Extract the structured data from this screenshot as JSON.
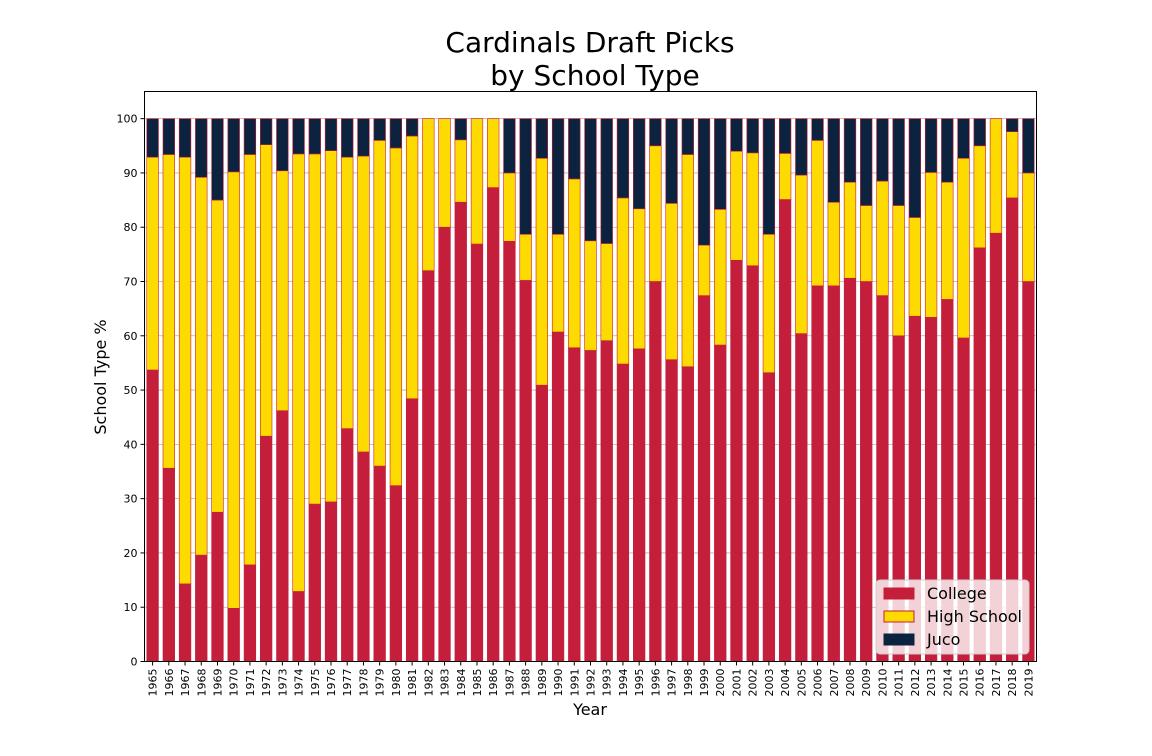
{
  "chart_data": {
    "type": "bar",
    "stacked": true,
    "title": "Cardinals Draft Picks\nby School Type",
    "title_lines": [
      "Cardinals Draft Picks",
      "by School Type"
    ],
    "xlabel": "Year",
    "ylabel": "School Type %",
    "ylim": [
      0,
      105
    ],
    "yticks": [
      0,
      10,
      20,
      30,
      40,
      50,
      60,
      70,
      80,
      90,
      100
    ],
    "grid": true,
    "legend_position": "lower-right",
    "categories": [
      "1965",
      "1966",
      "1967",
      "1968",
      "1969",
      "1970",
      "1971",
      "1972",
      "1973",
      "1974",
      "1975",
      "1976",
      "1977",
      "1978",
      "1979",
      "1980",
      "1981",
      "1982",
      "1983",
      "1984",
      "1985",
      "1986",
      "1987",
      "1988",
      "1989",
      "1990",
      "1991",
      "1992",
      "1993",
      "1994",
      "1995",
      "1996",
      "1997",
      "1998",
      "1999",
      "2000",
      "2001",
      "2002",
      "2003",
      "2004",
      "2005",
      "2006",
      "2007",
      "2008",
      "2009",
      "2010",
      "2011",
      "2012",
      "2013",
      "2014",
      "2015",
      "2016",
      "2017",
      "2018",
      "2019"
    ],
    "series": [
      {
        "name": "College",
        "color": "#c41e3a",
        "values": [
          53.7,
          35.6,
          14.3,
          19.6,
          27.5,
          9.8,
          17.8,
          41.5,
          46.2,
          12.9,
          29.0,
          29.4,
          42.9,
          38.6,
          36.0,
          32.4,
          48.4,
          72.0,
          80.0,
          84.6,
          76.9,
          87.3,
          77.4,
          70.2,
          50.9,
          60.7,
          57.8,
          57.3,
          59.1,
          54.8,
          57.6,
          70.0,
          55.6,
          54.3,
          67.4,
          58.3,
          73.9,
          72.9,
          53.2,
          85.1,
          60.4,
          69.2,
          69.2,
          70.6,
          70.0,
          67.4,
          60.0,
          63.6,
          63.4,
          66.7,
          59.6,
          76.2,
          78.9,
          85.4,
          70.0
        ]
      },
      {
        "name": "High School",
        "color": "#fedb00",
        "values": [
          39.2,
          57.8,
          78.6,
          69.6,
          57.5,
          80.4,
          75.6,
          53.7,
          44.2,
          80.6,
          64.5,
          64.7,
          50.0,
          54.5,
          60.0,
          62.2,
          48.4,
          28.0,
          20.0,
          11.5,
          23.1,
          12.7,
          12.6,
          8.5,
          41.8,
          18.0,
          31.1,
          20.2,
          17.9,
          30.6,
          25.8,
          25.0,
          28.8,
          39.1,
          9.3,
          25.0,
          20.1,
          20.8,
          25.5,
          8.5,
          29.2,
          26.8,
          15.4,
          17.7,
          14.0,
          21.1,
          24.0,
          18.2,
          26.7,
          21.6,
          33.1,
          18.8,
          21.1,
          12.2,
          20.0
        ]
      },
      {
        "name": "Juco",
        "color": "#0c2340",
        "values": [
          7.1,
          6.6,
          7.1,
          10.8,
          15.0,
          9.8,
          6.6,
          4.8,
          9.6,
          6.5,
          6.5,
          5.9,
          7.1,
          6.9,
          4.0,
          5.4,
          3.2,
          0.0,
          0.0,
          3.9,
          0.0,
          0.0,
          10.0,
          21.3,
          7.3,
          21.3,
          11.1,
          22.5,
          23.0,
          14.6,
          16.6,
          5.0,
          15.6,
          6.6,
          23.3,
          16.7,
          6.0,
          6.3,
          21.3,
          6.4,
          10.4,
          4.0,
          15.4,
          11.7,
          16.0,
          11.5,
          16.0,
          18.2,
          9.9,
          11.7,
          7.3,
          5.0,
          0.0,
          2.4,
          10.0
        ]
      }
    ]
  }
}
